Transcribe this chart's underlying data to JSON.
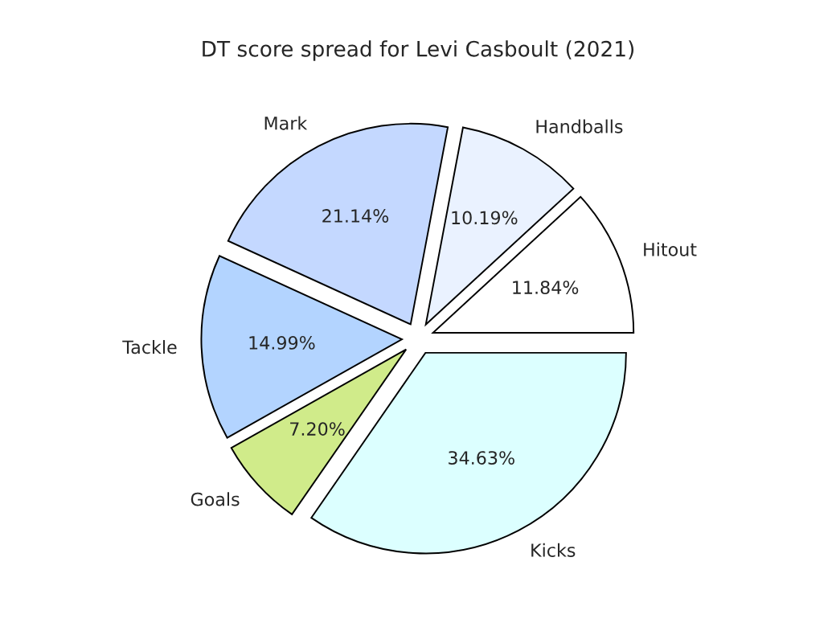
{
  "chart_data": {
    "type": "pie",
    "title": "DT score spread for Levi Casboult (2021)",
    "categories": [
      "Hitout",
      "Handballs",
      "Mark",
      "Tackle",
      "Goals",
      "Kicks"
    ],
    "values": [
      11.84,
      10.19,
      21.14,
      14.99,
      7.2,
      34.63
    ],
    "value_labels": [
      "11.84%",
      "10.19%",
      "21.14%",
      "14.99%",
      "7.20%",
      "34.63%"
    ],
    "colors": [
      "#ffffff",
      "#eaf2ff",
      "#c4d8ff",
      "#b3d4ff",
      "#d0eb8a",
      "#dcffff"
    ],
    "legend": false
  }
}
